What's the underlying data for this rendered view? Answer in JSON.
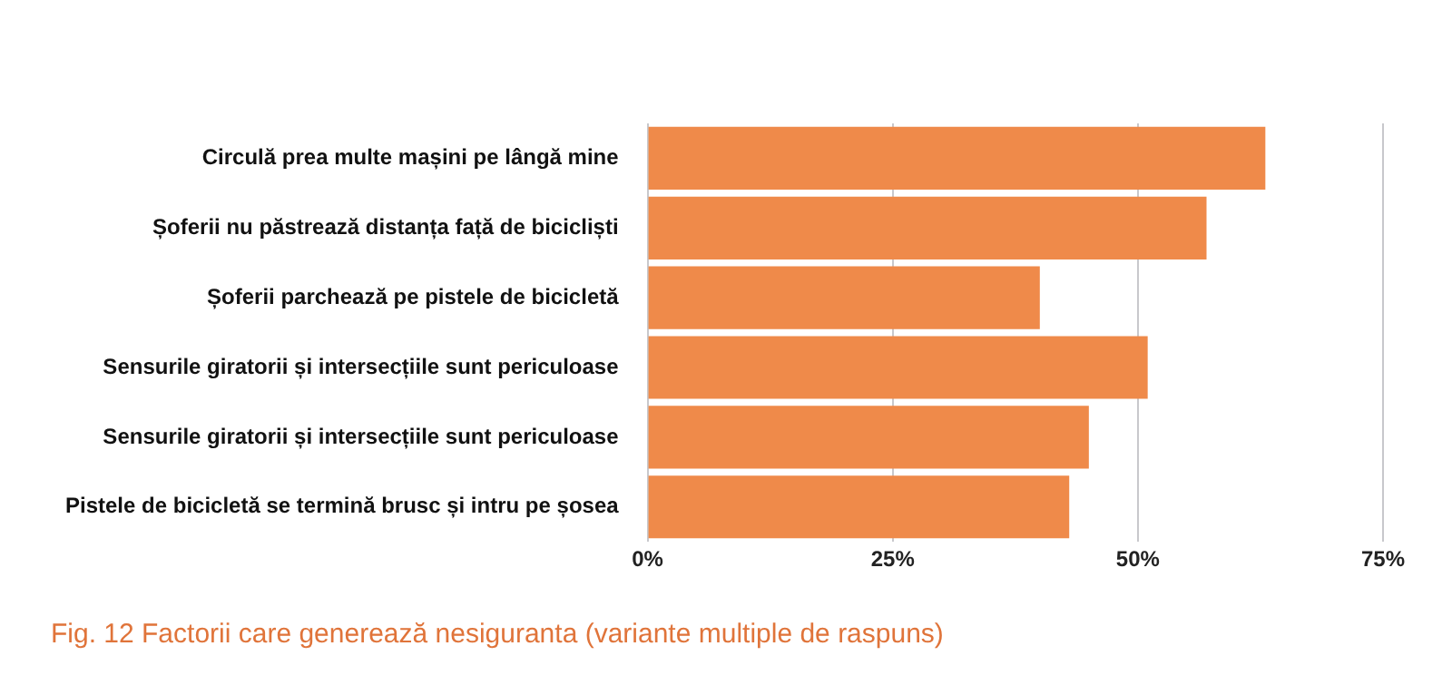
{
  "chart_data": {
    "type": "bar",
    "orientation": "horizontal",
    "title": "Fig. 12 Factorii care generează nesiguranta (variante multiple de raspuns)",
    "categories": [
      "Circulă prea multe mașini pe lângă mine",
      "Șoferii nu păstrează distanța față de bicicliști",
      "Șoferii parchează pe pistele de bicicletă",
      "Sensurile giratorii și intersecțiile sunt periculoase",
      "Sensurile giratorii și intersecțiile sunt periculoase",
      "Pistele de bicicletă se termină brusc și intru pe șosea"
    ],
    "values": [
      63,
      57,
      40,
      51,
      45,
      43
    ],
    "color": "#ef8a4a",
    "xlim": [
      0,
      75
    ],
    "xticks": [
      {
        "value": 0,
        "label": "0%"
      },
      {
        "value": 25,
        "label": "25%"
      },
      {
        "value": 50,
        "label": "50%"
      },
      {
        "value": 75,
        "label": "75%"
      }
    ],
    "grid": "x",
    "legend": false
  }
}
